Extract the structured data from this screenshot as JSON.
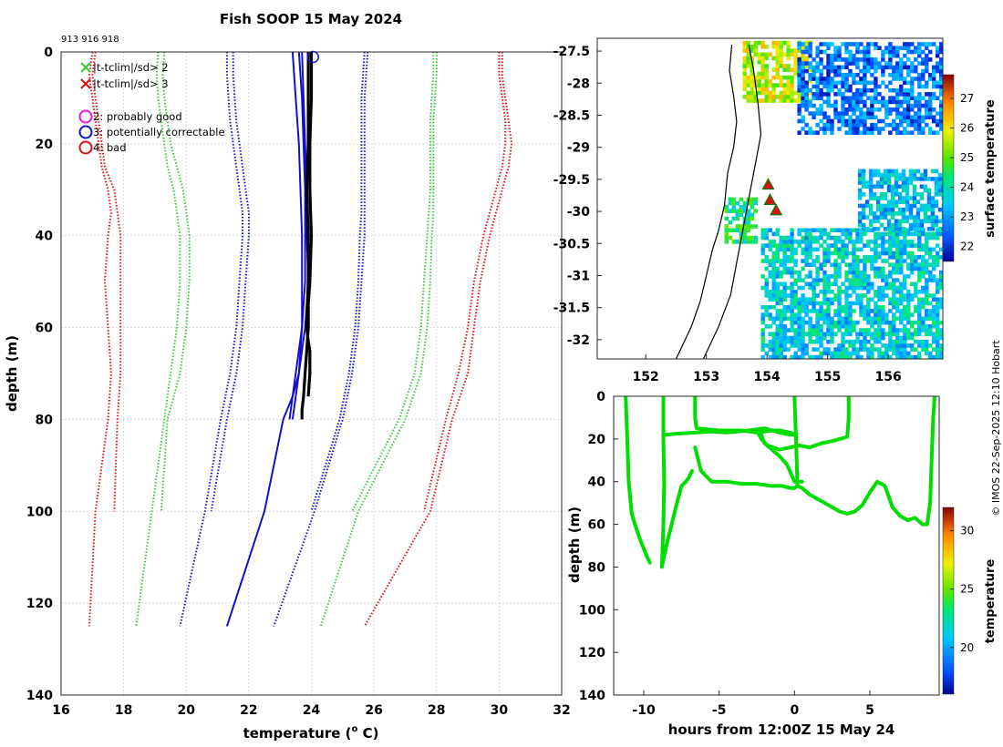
{
  "title": "Fish SOOP 15 May 2024",
  "cruise_ids": "913 916 918",
  "credit": "© IMOS 22-Sep-2025 12:10 Hobart",
  "colors": {
    "red": "#dd1111",
    "green": "#33cc33",
    "blue": "#1111cc",
    "black": "#000000",
    "magenta": "#ee11ee",
    "grid": "#cccccc",
    "profile_green": "#00dd00"
  },
  "chart_data": [
    {
      "type": "line",
      "name": "profile",
      "xlabel": "temperature (",
      "xlabel_sup": "o",
      "xlabel_end": " C)",
      "ylabel": "depth (m)",
      "xlim": [
        16,
        32
      ],
      "ylim": [
        0,
        140
      ],
      "xticks": [
        "16",
        "18",
        "20",
        "22",
        "24",
        "26",
        "28",
        "30",
        "32"
      ],
      "yticks": [
        "0",
        "20",
        "40",
        "60",
        "80",
        "100",
        "120",
        "140"
      ],
      "legend": [
        {
          "marker": "x",
          "color": "green",
          "label": "|t-tclim|/sd> 2"
        },
        {
          "marker": "x",
          "color": "red",
          "label": "|t-tclim|/sd> 3"
        },
        {
          "marker": "o",
          "color": "magenta",
          "label": "2: probably good"
        },
        {
          "marker": "o",
          "color": "blue",
          "label": "3: potentially correctable"
        },
        {
          "marker": "o",
          "color": "red",
          "label": "4: bad"
        }
      ],
      "series": [
        {
          "name": "clim-3sd-lo",
          "style": "dotted",
          "color": "red",
          "x": [
            17.0,
            16.9,
            17.0,
            17.1,
            17.2,
            17.3,
            17.5,
            17.6,
            17.5,
            17.4,
            17.5,
            17.6,
            17.5,
            17.3,
            17.1,
            16.9
          ],
          "y": [
            0,
            5,
            10,
            15,
            20,
            25,
            30,
            35,
            40,
            50,
            60,
            70,
            80,
            90,
            100,
            125
          ]
        },
        {
          "name": "clim-3sd-lo-b",
          "style": "dotted",
          "color": "red",
          "x": [
            17.1,
            17.0,
            17.1,
            17.2,
            17.3,
            17.4,
            17.7,
            17.8,
            17.9,
            17.9,
            17.9,
            17.9,
            17.8,
            17.7
          ],
          "y": [
            0,
            5,
            10,
            15,
            20,
            25,
            30,
            35,
            40,
            50,
            60,
            70,
            80,
            100
          ]
        },
        {
          "name": "clim-2sd-lo",
          "style": "dotted",
          "color": "green",
          "x": [
            19.1,
            19.05,
            19.1,
            19.2,
            19.3,
            19.4,
            19.6,
            19.7,
            19.8,
            19.8,
            19.7,
            19.5,
            19.3,
            18.9,
            18.4
          ],
          "y": [
            0,
            5,
            10,
            15,
            20,
            25,
            30,
            35,
            40,
            50,
            60,
            70,
            80,
            100,
            125
          ]
        },
        {
          "name": "clim-2sd-lo-b",
          "style": "dotted",
          "color": "green",
          "x": [
            19.3,
            19.25,
            19.3,
            19.4,
            19.5,
            19.7,
            19.9,
            20.0,
            20.1,
            20.1,
            20.0,
            19.8,
            19.4,
            19.2
          ],
          "y": [
            0,
            5,
            10,
            15,
            20,
            25,
            30,
            35,
            40,
            50,
            60,
            70,
            80,
            100
          ]
        },
        {
          "name": "clim-1sd-lo",
          "style": "dotted",
          "color": "blue",
          "x": [
            21.3,
            21.3,
            21.35,
            21.4,
            21.5,
            21.6,
            21.7,
            21.8,
            21.8,
            21.7,
            21.6,
            21.4,
            21.1,
            20.6,
            19.8
          ],
          "y": [
            0,
            5,
            10,
            15,
            20,
            25,
            30,
            35,
            40,
            50,
            60,
            70,
            80,
            100,
            125
          ]
        },
        {
          "name": "clim-1sd-lo-b",
          "style": "dotted",
          "color": "blue",
          "x": [
            21.5,
            21.5,
            21.55,
            21.6,
            21.7,
            21.8,
            21.9,
            22.0,
            22.0,
            21.9,
            21.8,
            21.6,
            21.3,
            20.8
          ],
          "y": [
            0,
            5,
            10,
            15,
            20,
            25,
            30,
            35,
            40,
            50,
            60,
            70,
            80,
            100
          ]
        },
        {
          "name": "xbt-1",
          "style": "solid",
          "color": "blue",
          "x": [
            23.4,
            23.5,
            23.6,
            23.65,
            23.7,
            23.7,
            23.7,
            23.6,
            23.4,
            23.1,
            22.8,
            22.5,
            21.3
          ],
          "y": [
            0,
            10,
            20,
            30,
            40,
            50,
            60,
            70,
            75,
            80,
            90,
            100,
            125
          ]
        },
        {
          "name": "xbt-2",
          "style": "solid",
          "color": "blue",
          "x": [
            23.6,
            23.7,
            23.75,
            23.8,
            23.8,
            23.8,
            23.7,
            23.5,
            23.3
          ],
          "y": [
            0,
            10,
            20,
            30,
            40,
            50,
            60,
            70,
            80
          ]
        },
        {
          "name": "xbt-3",
          "style": "solid",
          "color": "blue",
          "x": [
            23.7,
            23.75,
            23.8,
            23.85,
            23.85,
            23.9,
            23.8,
            23.6,
            23.4
          ],
          "y": [
            0,
            10,
            20,
            30,
            40,
            50,
            60,
            70,
            80
          ]
        },
        {
          "name": "obs",
          "style": "thick",
          "color": "black",
          "x": [
            24.0,
            24.0,
            23.95,
            23.95,
            24.0,
            23.95,
            23.9,
            23.9,
            23.85,
            23.8,
            23.75,
            23.7,
            23.7
          ],
          "y": [
            0,
            10,
            20,
            30,
            40,
            50,
            55,
            60,
            65,
            70,
            75,
            78,
            80
          ]
        },
        {
          "name": "obs-b",
          "style": "thick",
          "color": "black",
          "x": [
            23.9,
            23.9,
            23.9,
            23.85,
            23.9,
            23.9,
            23.85,
            23.9,
            23.95,
            23.95,
            23.9
          ],
          "y": [
            0,
            10,
            20,
            30,
            40,
            50,
            60,
            63,
            65,
            70,
            75
          ]
        },
        {
          "name": "clim-1sd-hi",
          "style": "dotted",
          "color": "blue",
          "x": [
            25.8,
            25.75,
            25.7,
            25.7,
            25.7,
            25.7,
            25.7,
            25.7,
            25.7,
            25.6,
            25.5,
            25.3,
            25.0,
            24.1,
            22.8
          ],
          "y": [
            0,
            5,
            10,
            15,
            20,
            25,
            30,
            35,
            40,
            50,
            60,
            70,
            80,
            100,
            125
          ]
        },
        {
          "name": "clim-1sd-hi-b",
          "style": "dotted",
          "color": "blue",
          "x": [
            25.7,
            25.65,
            25.6,
            25.6,
            25.6,
            25.6,
            25.6,
            25.6,
            25.55,
            25.5,
            25.4,
            25.2,
            24.9,
            24.0
          ],
          "y": [
            0,
            5,
            10,
            15,
            20,
            25,
            30,
            35,
            40,
            50,
            60,
            70,
            80,
            100
          ]
        },
        {
          "name": "clim-2sd-hi",
          "style": "dotted",
          "color": "green",
          "x": [
            28.0,
            28.0,
            27.95,
            27.9,
            27.9,
            27.9,
            27.9,
            27.9,
            27.85,
            27.8,
            27.7,
            27.5,
            27.0,
            25.5,
            24.3
          ],
          "y": [
            0,
            5,
            10,
            15,
            20,
            25,
            30,
            35,
            40,
            50,
            60,
            70,
            80,
            100,
            125
          ]
        },
        {
          "name": "clim-2sd-hi-b",
          "style": "dotted",
          "color": "green",
          "x": [
            27.9,
            27.9,
            27.85,
            27.8,
            27.8,
            27.8,
            27.8,
            27.75,
            27.7,
            27.6,
            27.5,
            27.3,
            26.8,
            25.3
          ],
          "y": [
            0,
            5,
            10,
            15,
            20,
            25,
            30,
            35,
            40,
            50,
            60,
            70,
            80,
            100
          ]
        },
        {
          "name": "clim-3sd-hi",
          "style": "dotted",
          "color": "red",
          "x": [
            30.1,
            30.1,
            30.2,
            30.3,
            30.4,
            30.3,
            30.1,
            29.9,
            29.7,
            29.4,
            29.2,
            29.0,
            28.5,
            27.8,
            25.7
          ],
          "y": [
            0,
            5,
            10,
            15,
            20,
            25,
            30,
            35,
            40,
            50,
            60,
            70,
            80,
            100,
            125
          ]
        },
        {
          "name": "clim-3sd-hi-b",
          "style": "dotted",
          "color": "red",
          "x": [
            30.0,
            30.0,
            30.1,
            30.2,
            30.2,
            30.1,
            29.9,
            29.7,
            29.5,
            29.2,
            29.0,
            28.7,
            28.3,
            27.6
          ],
          "y": [
            0,
            5,
            10,
            15,
            20,
            25,
            30,
            35,
            40,
            50,
            60,
            70,
            80,
            100
          ]
        }
      ],
      "flags": [
        {
          "color": "blue",
          "x": 24.05,
          "y": 0.5
        }
      ]
    },
    {
      "type": "heatmap",
      "name": "map",
      "xlim": [
        151.2,
        156.9
      ],
      "ylim": [
        -32.3,
        -27.3
      ],
      "xticks": [
        "152",
        "153",
        "154",
        "155",
        "156"
      ],
      "yticks": [
        "-27.5",
        "-28",
        "-28.5",
        "-29",
        "-29.5",
        "-30",
        "-30.5",
        "-31",
        "-31.5",
        "-32"
      ],
      "colorbar_label": "surface temperature",
      "colorbar_ticks": [
        "22",
        "23",
        "24",
        "25",
        "26",
        "27"
      ],
      "clim": [
        21.5,
        27.8
      ],
      "patches": [
        {
          "x0": 153.6,
          "x1": 154.7,
          "y0": -28.3,
          "y1": -27.4,
          "t": 25.6
        },
        {
          "x0": 154.5,
          "x1": 156.9,
          "y0": -28.8,
          "y1": -27.4,
          "t": 22.6
        },
        {
          "x0": 153.9,
          "x1": 156.9,
          "y0": -32.3,
          "y1": -30.3,
          "t": 23.6
        },
        {
          "x0": 155.5,
          "x1": 156.9,
          "y0": -30.3,
          "y1": -29.4,
          "t": 23.3
        },
        {
          "x0": 153.3,
          "x1": 153.8,
          "y0": -30.5,
          "y1": -29.8,
          "t": 24.3
        }
      ],
      "coast": [
        [
          153.42,
          -27.4
        ],
        [
          153.38,
          -27.8
        ],
        [
          153.45,
          -28.2
        ],
        [
          153.5,
          -28.6
        ],
        [
          153.45,
          -29.0
        ],
        [
          153.35,
          -29.4
        ],
        [
          153.3,
          -29.9
        ],
        [
          153.2,
          -30.3
        ],
        [
          153.1,
          -30.6
        ],
        [
          153.0,
          -31.0
        ],
        [
          152.9,
          -31.4
        ],
        [
          152.75,
          -31.8
        ],
        [
          152.55,
          -32.2
        ],
        [
          152.5,
          -32.3
        ]
      ],
      "shelf": [
        [
          153.7,
          -27.4
        ],
        [
          153.78,
          -27.8
        ],
        [
          153.85,
          -28.3
        ],
        [
          153.9,
          -28.8
        ],
        [
          153.8,
          -29.3
        ],
        [
          153.7,
          -29.8
        ],
        [
          153.6,
          -30.3
        ],
        [
          153.5,
          -30.8
        ],
        [
          153.4,
          -31.3
        ],
        [
          153.2,
          -31.8
        ],
        [
          152.95,
          -32.3
        ]
      ],
      "stations": [
        [
          154.02,
          -29.58
        ],
        [
          154.05,
          -29.82
        ],
        [
          154.15,
          -29.98
        ]
      ]
    },
    {
      "type": "scatter",
      "name": "waterfall",
      "xlabel": "hours from 12:00Z 15 May 24",
      "ylabel": "depth (m)",
      "xlim": [
        -12,
        9.6
      ],
      "ylim": [
        0,
        140
      ],
      "xticks": [
        "-10",
        "-5",
        "0",
        "5"
      ],
      "yticks": [
        "0",
        "20",
        "40",
        "60",
        "80",
        "100",
        "120",
        "140"
      ],
      "colorbar_label": "temperature",
      "colorbar_ticks": [
        "20",
        "25",
        "30"
      ],
      "clim": [
        16,
        32
      ],
      "series": [
        {
          "name": "drop-1",
          "x": [
            -11.2,
            -11.1,
            -11.0,
            -10.8,
            -10.5,
            -10.2,
            -9.8,
            -9.6
          ],
          "y": [
            0,
            20,
            40,
            55,
            62,
            68,
            75,
            78
          ]
        },
        {
          "name": "drop-2",
          "x": [
            -8.7,
            -8.7,
            -8.65,
            -8.7,
            -8.8,
            -8.5,
            -7.8,
            -7.5,
            -7.2,
            -7.0,
            -6.8
          ],
          "y": [
            0,
            20,
            40,
            60,
            80,
            70,
            50,
            42,
            40,
            38,
            35
          ]
        },
        {
          "name": "drop-3",
          "x": [
            -6.6,
            -6.6,
            -6.5,
            -5.0,
            -3.5,
            -2.5,
            -1.5,
            -1.0,
            -0.3,
            0.0
          ],
          "y": [
            0,
            10,
            15,
            16,
            16,
            17,
            16,
            17,
            18,
            18
          ]
        },
        {
          "name": "leg-4",
          "x": [
            -8.5,
            -7.8,
            -6.5,
            -5.5,
            -4.5,
            -3.0,
            -2.0,
            -1.5,
            -1.0,
            -0.3,
            0.0
          ],
          "y": [
            18,
            17.5,
            17,
            16.5,
            17,
            16,
            15,
            16,
            16,
            17,
            18
          ]
        },
        {
          "name": "drop-5",
          "x": [
            -6.6,
            -6.2,
            -5.5,
            -4.5,
            -3.5,
            -2.5,
            -1.5,
            -0.8,
            -0.3,
            0.0,
            0.2
          ],
          "y": [
            24,
            35,
            40,
            40,
            41,
            41,
            42,
            42,
            43,
            43,
            42
          ]
        },
        {
          "name": "drop-6",
          "x": [
            -2.5,
            -2.2,
            -1.8,
            -1.0,
            -0.3,
            0.3,
            1.0,
            1.8,
            2.5,
            3.0,
            3.5,
            3.6,
            3.6
          ],
          "y": [
            16,
            20,
            23,
            25,
            24,
            23,
            24,
            22,
            21,
            20,
            19,
            10,
            0
          ]
        },
        {
          "name": "drop-7",
          "x": [
            -2.3,
            -2.0,
            -1.0,
            -0.5,
            0.0,
            0.3,
            0.5
          ],
          "y": [
            16,
            22,
            28,
            32,
            40,
            40,
            40
          ]
        },
        {
          "name": "drop-8",
          "x": [
            0.0,
            0.1,
            0.2,
            0.5,
            1.0,
            1.5,
            2.0,
            2.5,
            3.0,
            3.5,
            4.0,
            4.5,
            5.0,
            5.5,
            6.0,
            6.5,
            7.0,
            7.5,
            8.0,
            8.5,
            8.8,
            9.0,
            9.1,
            9.2,
            9.3
          ],
          "y": [
            0,
            20,
            42,
            43,
            46,
            48,
            50,
            52,
            54,
            55,
            54,
            51,
            45,
            40,
            42,
            52,
            56,
            58,
            57,
            60,
            60,
            50,
            30,
            10,
            0
          ]
        }
      ]
    }
  ]
}
